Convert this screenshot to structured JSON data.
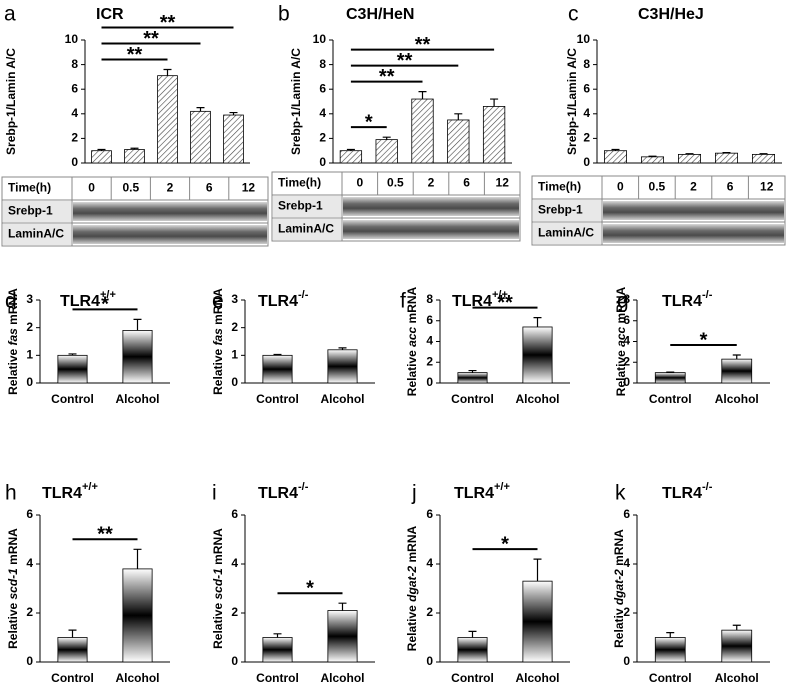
{
  "chart_data": [
    {
      "type": "bar",
      "panel": "a",
      "title": "ICR",
      "ylabel": [
        "Srebp-1/Lamin A/C"
      ],
      "categories": [
        "0",
        "0.5",
        "2",
        "6",
        "12"
      ],
      "values": [
        1.0,
        1.1,
        7.1,
        4.2,
        3.9
      ],
      "errors": [
        0.1,
        0.1,
        0.5,
        0.3,
        0.2
      ],
      "ylim": [
        0,
        10
      ],
      "yticks": [
        0,
        2,
        4,
        6,
        8,
        10
      ],
      "bar_style": "hatch",
      "color": "#000000",
      "significance": [
        {
          "from": 0,
          "to": 4,
          "label": "**"
        },
        {
          "from": 0,
          "to": 3,
          "label": "**"
        },
        {
          "from": 0,
          "to": 2,
          "label": "**"
        }
      ],
      "blot": {
        "header": "Time(h)",
        "rows": [
          "Srebp-1",
          "LaminA/C"
        ]
      }
    },
    {
      "type": "bar",
      "panel": "b",
      "title": "C3H/HeN",
      "ylabel": [
        "Srebp-1/Lamin A/C"
      ],
      "categories": [
        "0",
        "0.5",
        "2",
        "6",
        "12"
      ],
      "values": [
        1.0,
        1.9,
        5.2,
        3.5,
        4.6
      ],
      "errors": [
        0.1,
        0.2,
        0.6,
        0.5,
        0.6
      ],
      "ylim": [
        0,
        10
      ],
      "yticks": [
        0,
        2,
        4,
        6,
        8,
        10
      ],
      "bar_style": "hatch",
      "color": "#000000",
      "significance": [
        {
          "from": 0,
          "to": 4,
          "label": "**"
        },
        {
          "from": 0,
          "to": 3,
          "label": "**"
        },
        {
          "from": 0,
          "to": 2,
          "label": "**"
        },
        {
          "from": 0,
          "to": 1,
          "label": "*"
        }
      ],
      "blot": {
        "header": "Time(h)",
        "rows": [
          "Srebp-1",
          "LaminA/C"
        ]
      }
    },
    {
      "type": "bar",
      "panel": "c",
      "title": "C3H/HeJ",
      "ylabel": [
        "Srebp-1/Lamin A/C"
      ],
      "categories": [
        "0",
        "0.5",
        "2",
        "6",
        "12"
      ],
      "values": [
        1.0,
        0.5,
        0.7,
        0.8,
        0.7
      ],
      "errors": [
        0.1,
        0.05,
        0.05,
        0.05,
        0.05
      ],
      "ylim": [
        0,
        10
      ],
      "yticks": [
        0,
        2,
        4,
        6,
        8,
        10
      ],
      "bar_style": "hatch",
      "color": "#000000",
      "significance": [],
      "blot": {
        "header": "Time(h)",
        "rows": [
          "Srebp-1",
          "LaminA/C"
        ]
      }
    },
    {
      "type": "bar",
      "panel": "d",
      "title": "TLR4",
      "title_sup": "+/+",
      "ylabel": [
        "Relative ",
        "fas",
        " mRNA"
      ],
      "categories": [
        "Control",
        "Alcohol"
      ],
      "values": [
        1.0,
        1.9
      ],
      "errors": [
        0.05,
        0.4
      ],
      "ylim": [
        0,
        3
      ],
      "yticks": [
        0,
        1,
        2,
        3
      ],
      "bar_style": "gradient",
      "color": "#000000",
      "significance": [
        {
          "from": 0,
          "to": 1,
          "label": "*"
        }
      ]
    },
    {
      "type": "bar",
      "panel": "e",
      "title": "TLR4",
      "title_sup": "-/-",
      "ylabel": [
        "Relative ",
        "fas",
        " mRNA"
      ],
      "categories": [
        "Control",
        "Alcohol"
      ],
      "values": [
        1.0,
        1.2
      ],
      "errors": [
        0.03,
        0.07
      ],
      "ylim": [
        0,
        3
      ],
      "yticks": [
        0,
        1,
        2,
        3
      ],
      "bar_style": "gradient",
      "color": "#000000",
      "significance": []
    },
    {
      "type": "bar",
      "panel": "f",
      "title": "TLR4",
      "title_sup": "+/+",
      "ylabel": [
        "Relative ",
        "acc",
        " mRNA"
      ],
      "categories": [
        "Control",
        "Alcohol"
      ],
      "values": [
        1.0,
        5.4
      ],
      "errors": [
        0.2,
        0.9
      ],
      "ylim": [
        0,
        8
      ],
      "yticks": [
        0,
        2,
        4,
        6,
        8
      ],
      "bar_style": "gradient",
      "color": "#000000",
      "significance": [
        {
          "from": 0,
          "to": 1,
          "label": "**"
        }
      ]
    },
    {
      "type": "bar",
      "panel": "g",
      "title": "TLR4",
      "title_sup": "-/-",
      "ylabel": [
        "Relative ",
        "acc",
        " mRNA"
      ],
      "categories": [
        "Control",
        "Alcohol"
      ],
      "values": [
        1.0,
        2.3
      ],
      "errors": [
        0.05,
        0.4
      ],
      "ylim": [
        0,
        8
      ],
      "yticks": [
        0,
        2,
        4,
        6,
        8
      ],
      "bar_style": "gradient",
      "color": "#000000",
      "significance": [
        {
          "from": 0,
          "to": 1,
          "label": "*"
        }
      ]
    },
    {
      "type": "bar",
      "panel": "h",
      "title": "TLR4",
      "title_sup": "+/+",
      "ylabel": [
        "Relative ",
        "scd-1",
        " mRNA"
      ],
      "categories": [
        "Control",
        "Alcohol"
      ],
      "values": [
        1.0,
        3.8
      ],
      "errors": [
        0.3,
        0.8
      ],
      "ylim": [
        0,
        6
      ],
      "yticks": [
        0,
        2,
        4,
        6
      ],
      "bar_style": "gradient",
      "color": "#000000",
      "significance": [
        {
          "from": 0,
          "to": 1,
          "label": "**"
        }
      ]
    },
    {
      "type": "bar",
      "panel": "i",
      "title": "TLR4",
      "title_sup": "-/-",
      "ylabel": [
        "Relative ",
        "scd-1",
        " mRNA"
      ],
      "categories": [
        "Control",
        "Alcohol"
      ],
      "values": [
        1.0,
        2.1
      ],
      "errors": [
        0.15,
        0.3
      ],
      "ylim": [
        0,
        6
      ],
      "yticks": [
        0,
        2,
        4,
        6
      ],
      "bar_style": "gradient",
      "color": "#000000",
      "significance": [
        {
          "from": 0,
          "to": 1,
          "label": "*"
        }
      ]
    },
    {
      "type": "bar",
      "panel": "j",
      "title": "TLR4",
      "title_sup": "+/+",
      "ylabel": [
        "Relative ",
        "dgat-2",
        " mRNA"
      ],
      "categories": [
        "Control",
        "Alcohol"
      ],
      "values": [
        1.0,
        3.3
      ],
      "errors": [
        0.25,
        0.9
      ],
      "ylim": [
        0,
        6
      ],
      "yticks": [
        0,
        2,
        4,
        6
      ],
      "bar_style": "gradient",
      "color": "#000000",
      "significance": [
        {
          "from": 0,
          "to": 1,
          "label": "*"
        }
      ]
    },
    {
      "type": "bar",
      "panel": "k",
      "title": "TLR4",
      "title_sup": "-/-",
      "ylabel": [
        "Relativ ",
        "dgat-2",
        " mRNA"
      ],
      "categories": [
        "Control",
        "Alcohol"
      ],
      "values": [
        1.0,
        1.3
      ],
      "errors": [
        0.2,
        0.2
      ],
      "ylim": [
        0,
        6
      ],
      "yticks": [
        0,
        2,
        4,
        6
      ],
      "bar_style": "gradient",
      "color": "#000000",
      "significance": []
    }
  ]
}
